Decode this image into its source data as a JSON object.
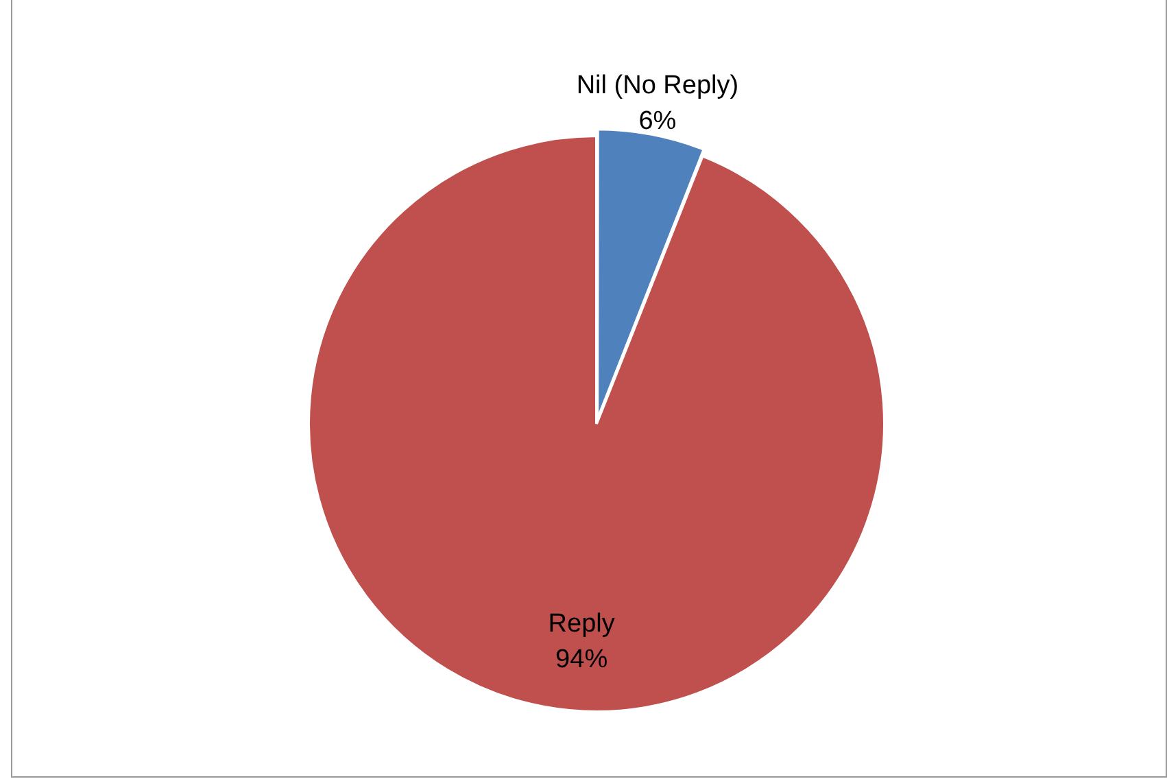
{
  "chart_data": {
    "type": "pie",
    "categories": [
      "Nil (No Reply)",
      "Reply"
    ],
    "values": [
      6,
      94
    ],
    "colors": [
      "#4f81bd",
      "#c0504d"
    ],
    "value_labels": [
      "6%",
      "94%"
    ],
    "legend": false
  }
}
